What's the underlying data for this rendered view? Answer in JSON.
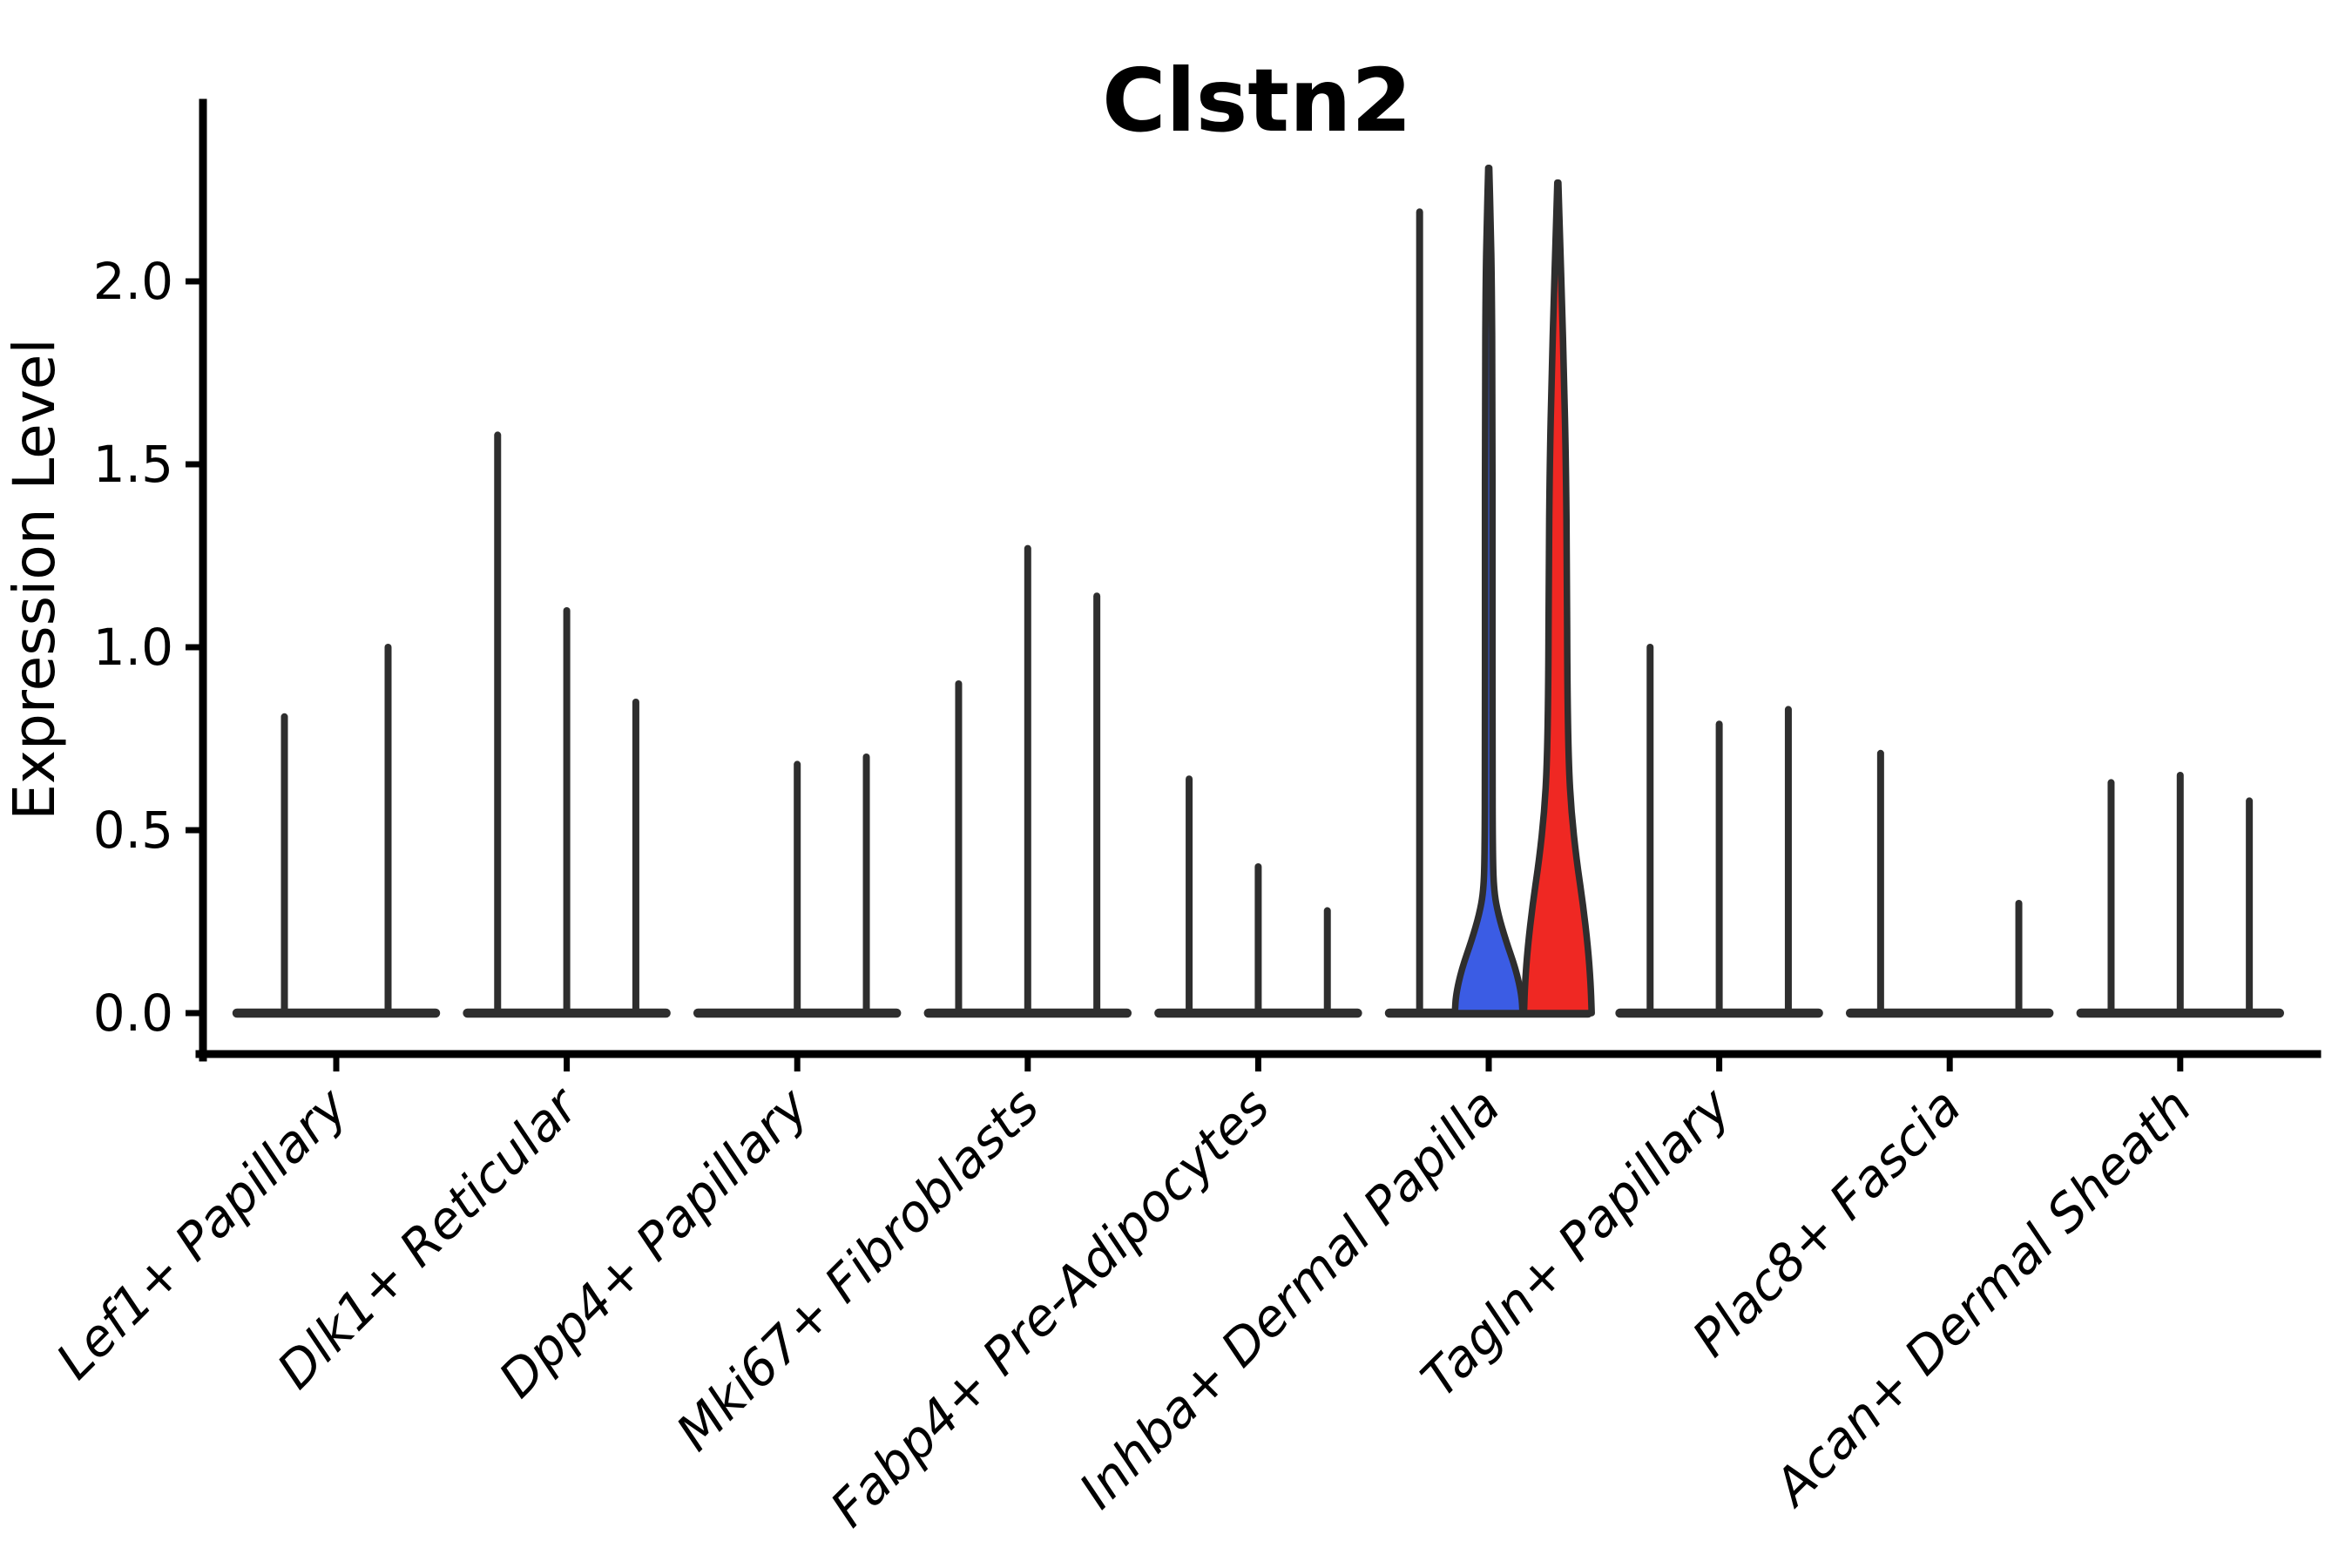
{
  "title": "Clstn2",
  "y_axis": {
    "label": "Expression Level",
    "tick_labels": [
      "0.0",
      "0.5",
      "1.0",
      "1.5",
      "2.0"
    ]
  },
  "chart_data": {
    "type": "violin",
    "title": "Clstn2",
    "ylabel": "Expression Level",
    "xlabel": "",
    "ylim": [
      -0.11,
      2.48
    ],
    "yticks": [
      0.0,
      0.5,
      1.0,
      1.5,
      2.0
    ],
    "ytick_labels": [
      "0.0",
      "0.5",
      "1.0",
      "1.5",
      "2.0"
    ],
    "grid": false,
    "legend": "none",
    "x_tick_rotation": 45,
    "x_tick_style": "italic",
    "categories": [
      "Lef1+ Papillary",
      "Dlk1+ Reticular",
      "Dpp4+ Papillary",
      "Mki67+ Fibroblasts",
      "Fabp4+ Pre-Adipocytes",
      "Inhba+ Dermal Papilla",
      "Tagln+ Papillary",
      "Plac8+ Fascia",
      "Acan+ Dermal Sheath"
    ],
    "colors": {
      "highlight_blue": "#3B5CE4",
      "highlight_red": "#EF2823",
      "violin_line": "#2E2E2E"
    },
    "groups": [
      {
        "category": "Lef1+ Papillary",
        "violins": [
          {
            "peak_expression": 0.81,
            "style": "spike"
          },
          {
            "peak_expression": 1.0,
            "style": "spike"
          }
        ]
      },
      {
        "category": "Dlk1+ Reticular",
        "violins": [
          {
            "peak_expression": 1.58,
            "style": "spike"
          },
          {
            "peak_expression": 1.1,
            "style": "spike"
          },
          {
            "peak_expression": 0.85,
            "style": "spike"
          }
        ]
      },
      {
        "category": "Dpp4+ Papillary",
        "violins": [
          {
            "peak_expression": 0.0,
            "style": "flat"
          },
          {
            "peak_expression": 0.68,
            "style": "spike"
          },
          {
            "peak_expression": 0.7,
            "style": "spike"
          }
        ]
      },
      {
        "category": "Mki67+ Fibroblasts",
        "violins": [
          {
            "peak_expression": 0.9,
            "style": "spike"
          },
          {
            "peak_expression": 1.27,
            "style": "spike"
          },
          {
            "peak_expression": 1.14,
            "style": "spike"
          }
        ]
      },
      {
        "category": "Fabp4+ Pre-Adipocytes",
        "violins": [
          {
            "peak_expression": 0.64,
            "style": "spike"
          },
          {
            "peak_expression": 0.4,
            "style": "spike"
          },
          {
            "peak_expression": 0.28,
            "style": "spike"
          }
        ]
      },
      {
        "category": "Inhba+ Dermal Papilla",
        "violins": [
          {
            "peak_expression": 2.19,
            "style": "spike"
          },
          {
            "peak_expression": 2.31,
            "style": "filled-blue",
            "profile": [
              [
                0,
                1
              ],
              [
                0.05,
                0.97
              ],
              [
                0.12,
                0.8
              ],
              [
                0.2,
                0.5
              ],
              [
                0.27,
                0.28
              ],
              [
                0.33,
                0.16
              ],
              [
                0.42,
                0.12
              ],
              [
                0.7,
                0.11
              ],
              [
                1.2,
                0.11
              ],
              [
                1.7,
                0.11
              ],
              [
                2.0,
                0.09
              ],
              [
                2.15,
                0.06
              ],
              [
                2.31,
                0.015
              ]
            ]
          },
          {
            "peak_expression": 2.27,
            "style": "filled-red",
            "profile": [
              [
                0,
                1
              ],
              [
                0.08,
                0.97
              ],
              [
                0.18,
                0.89
              ],
              [
                0.3,
                0.74
              ],
              [
                0.42,
                0.55
              ],
              [
                0.55,
                0.4
              ],
              [
                0.68,
                0.32
              ],
              [
                0.9,
                0.28
              ],
              [
                1.2,
                0.27
              ],
              [
                1.5,
                0.24
              ],
              [
                1.75,
                0.18
              ],
              [
                1.95,
                0.12
              ],
              [
                2.1,
                0.07
              ],
              [
                2.27,
                0.015
              ]
            ]
          }
        ]
      },
      {
        "category": "Tagln+ Papillary",
        "violins": [
          {
            "peak_expression": 1.0,
            "style": "spike"
          },
          {
            "peak_expression": 0.79,
            "style": "spike"
          },
          {
            "peak_expression": 0.83,
            "style": "spike"
          }
        ]
      },
      {
        "category": "Plac8+ Fascia",
        "violins": [
          {
            "peak_expression": 0.71,
            "style": "spike"
          },
          {
            "peak_expression": 0.0,
            "style": "flat"
          },
          {
            "peak_expression": 0.3,
            "style": "spike"
          }
        ]
      },
      {
        "category": "Acan+ Dermal Sheath",
        "violins": [
          {
            "peak_expression": 0.63,
            "style": "spike"
          },
          {
            "peak_expression": 0.65,
            "style": "spike"
          },
          {
            "peak_expression": 0.58,
            "style": "spike"
          }
        ]
      }
    ]
  }
}
